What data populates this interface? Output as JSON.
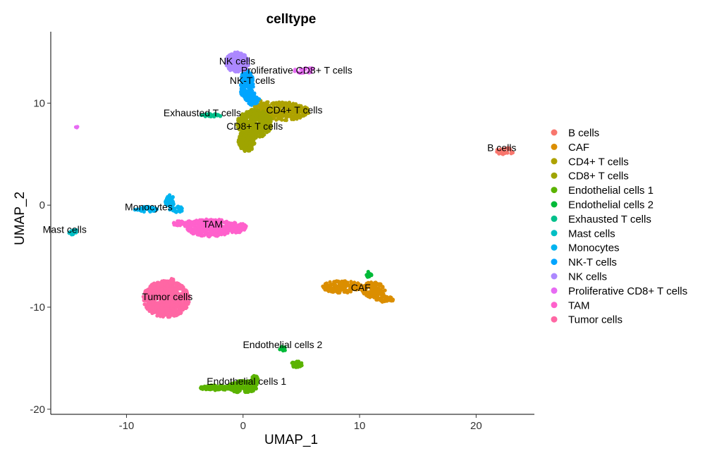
{
  "chart_data": {
    "type": "scatter",
    "title": "celltype",
    "xlabel": "UMAP_1",
    "ylabel": "UMAP_2",
    "xlim": [
      -16.5,
      25
    ],
    "ylim": [
      -20.5,
      17
    ],
    "xticks": [
      -10,
      0,
      10,
      20
    ],
    "yticks": [
      -20,
      -10,
      0,
      10
    ],
    "grid": false,
    "legend_position": "right",
    "series": [
      {
        "name": "B cells",
        "color": "#F8766D",
        "label_x": 22.2,
        "label_y": 5.3,
        "blobs": [
          {
            "cx": 22.5,
            "cy": 5.3,
            "rx": 0.8,
            "ry": 0.35,
            "n": 25
          }
        ]
      },
      {
        "name": "CAF",
        "color": "#DB8E00",
        "label_x": 10.1,
        "label_y": -8.4,
        "blobs": [
          {
            "cx": 8.5,
            "cy": -8.0,
            "rx": 1.7,
            "ry": 0.6,
            "n": 160
          },
          {
            "cx": 11.2,
            "cy": -8.3,
            "rx": 1.0,
            "ry": 0.8,
            "n": 120
          },
          {
            "cx": 12.2,
            "cy": -9.2,
            "rx": 0.8,
            "ry": 0.3,
            "n": 40
          }
        ]
      },
      {
        "name": "CD4+ T cells",
        "color": "#AEA200",
        "label_x": 4.4,
        "label_y": 9.0,
        "blobs": [
          {
            "cx": 3.4,
            "cy": 9.2,
            "rx": 2.3,
            "ry": 0.9,
            "n": 320
          },
          {
            "cx": 1.6,
            "cy": 9.6,
            "rx": 0.8,
            "ry": 0.8,
            "n": 80
          }
        ]
      },
      {
        "name": "CD8+ T cells",
        "color": "#9FA400",
        "label_x": 1.0,
        "label_y": 7.4,
        "blobs": [
          {
            "cx": 1.0,
            "cy": 8.0,
            "rx": 1.5,
            "ry": 1.4,
            "n": 360
          },
          {
            "cx": 0.3,
            "cy": 6.3,
            "rx": 0.7,
            "ry": 1.1,
            "n": 160
          }
        ]
      },
      {
        "name": "Endothelial cells 1",
        "color": "#5BB300",
        "label_x": 0.3,
        "label_y": -17.6,
        "blobs": [
          {
            "cx": 0.0,
            "cy": -17.8,
            "rx": 1.2,
            "ry": 0.6,
            "n": 200
          },
          {
            "cx": -2.4,
            "cy": -17.9,
            "rx": 1.3,
            "ry": 0.25,
            "n": 90
          },
          {
            "cx": 1.0,
            "cy": -17.2,
            "rx": 0.3,
            "ry": 0.5,
            "n": 50
          },
          {
            "cx": 4.6,
            "cy": -15.6,
            "rx": 0.5,
            "ry": 0.3,
            "n": 30
          }
        ]
      },
      {
        "name": "Endothelial cells 2",
        "color": "#00BA38",
        "label_x": 3.4,
        "label_y": -14.0,
        "blobs": [
          {
            "cx": 3.4,
            "cy": -14.1,
            "rx": 0.25,
            "ry": 0.25,
            "n": 12
          },
          {
            "cx": 10.8,
            "cy": -6.8,
            "rx": 0.25,
            "ry": 0.3,
            "n": 12
          }
        ]
      },
      {
        "name": "Exhausted T cells",
        "color": "#00C08B",
        "label_x": -3.5,
        "label_y": 8.7,
        "blobs": [
          {
            "cx": -2.7,
            "cy": 8.8,
            "rx": 0.9,
            "ry": 0.15,
            "n": 30
          }
        ]
      },
      {
        "name": "Mast cells",
        "color": "#00BFC4",
        "label_x": -15.3,
        "label_y": -2.7,
        "blobs": [
          {
            "cx": -14.6,
            "cy": -2.6,
            "rx": 0.35,
            "ry": 0.3,
            "n": 20
          }
        ]
      },
      {
        "name": "Monocytes",
        "color": "#00B4F0",
        "label_x": -8.1,
        "label_y": -0.5,
        "blobs": [
          {
            "cx": -8.3,
            "cy": -0.4,
            "rx": 1.0,
            "ry": 0.25,
            "n": 50
          },
          {
            "cx": -6.3,
            "cy": 0.4,
            "rx": 0.4,
            "ry": 0.6,
            "n": 50
          },
          {
            "cx": -5.7,
            "cy": -0.4,
            "rx": 0.6,
            "ry": 0.3,
            "n": 30
          }
        ]
      },
      {
        "name": "NK-T cells",
        "color": "#00A5FF",
        "label_x": 0.8,
        "label_y": 11.9,
        "blobs": [
          {
            "cx": 0.3,
            "cy": 11.8,
            "rx": 0.6,
            "ry": 1.4,
            "n": 200
          },
          {
            "cx": 0.8,
            "cy": 10.4,
            "rx": 0.6,
            "ry": 0.6,
            "n": 80
          }
        ]
      },
      {
        "name": "NK cells",
        "color": "#AC88FF",
        "label_x": -0.5,
        "label_y": 13.8,
        "blobs": [
          {
            "cx": -0.5,
            "cy": 14.0,
            "rx": 1.0,
            "ry": 1.0,
            "n": 240
          }
        ]
      },
      {
        "name": "Proliferative CD8+ T cells",
        "color": "#E76BF3",
        "label_x": 4.6,
        "label_y": 12.9,
        "blobs": [
          {
            "cx": 5.3,
            "cy": 13.2,
            "rx": 0.9,
            "ry": 0.3,
            "n": 25
          },
          {
            "cx": -14.3,
            "cy": 7.7,
            "rx": 0.1,
            "ry": 0.1,
            "n": 4
          }
        ]
      },
      {
        "name": "TAM",
        "color": "#FF61CC",
        "label_x": -2.6,
        "label_y": -2.2,
        "blobs": [
          {
            "cx": -2.8,
            "cy": -2.2,
            "rx": 2.0,
            "ry": 0.9,
            "n": 280
          },
          {
            "cx": -0.6,
            "cy": -2.2,
            "rx": 0.9,
            "ry": 0.5,
            "n": 100
          },
          {
            "cx": -5.0,
            "cy": -1.8,
            "rx": 1.0,
            "ry": 0.3,
            "n": 60
          }
        ]
      },
      {
        "name": "Tumor cells",
        "color": "#FF67A4",
        "label_x": -6.5,
        "label_y": -9.3,
        "blobs": [
          {
            "cx": -6.6,
            "cy": -9.2,
            "rx": 2.0,
            "ry": 1.8,
            "n": 650
          },
          {
            "cx": -6.2,
            "cy": -7.4,
            "rx": 0.3,
            "ry": 0.2,
            "n": 10
          }
        ]
      }
    ]
  }
}
